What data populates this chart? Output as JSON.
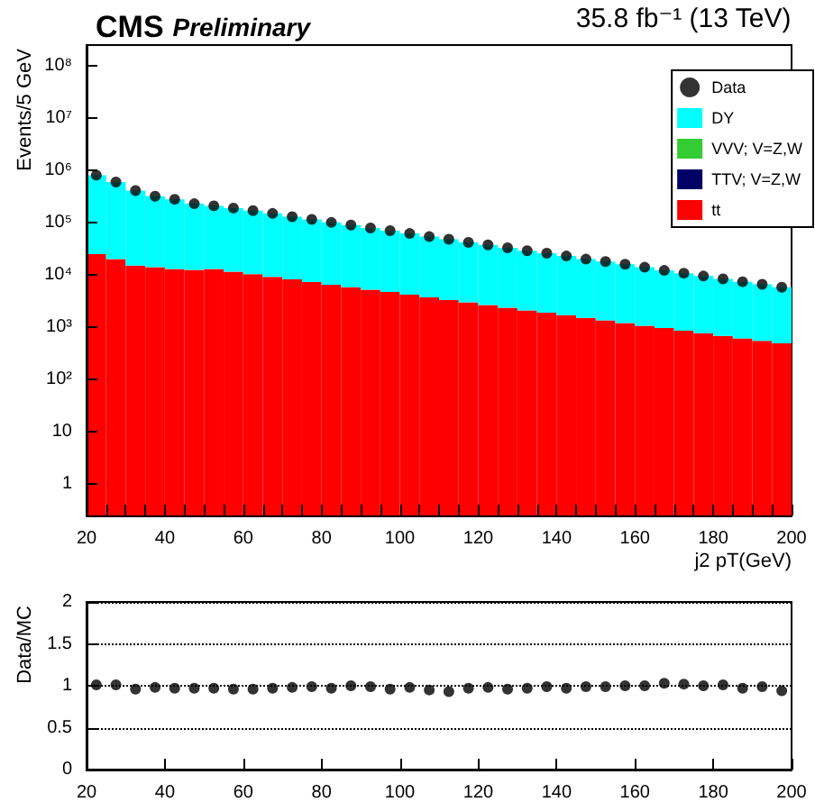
{
  "chart_data": [
    {
      "type": "bar",
      "title": "CMS",
      "subtitle": "Preliminary",
      "annotations": [
        "35.8 fb⁻¹ (13 TeV)"
      ],
      "xlabel": "j2 pT(GeV)",
      "ylabel": "Events/5 GeV",
      "x": [
        22.5,
        27.5,
        32.5,
        37.5,
        42.5,
        47.5,
        52.5,
        57.5,
        62.5,
        67.5,
        72.5,
        77.5,
        82.5,
        87.5,
        92.5,
        97.5,
        102.5,
        107.5,
        112.5,
        117.5,
        122.5,
        127.5,
        132.5,
        137.5,
        142.5,
        147.5,
        152.5,
        157.5,
        162.5,
        167.5,
        172.5,
        177.5,
        182.5,
        187.5,
        192.5,
        197.5
      ],
      "stacked": true,
      "log": "y",
      "marker": "circle",
      "legend": "top right",
      "grid": false,
      "xlim": [
        20,
        200
      ],
      "xticks": [
        20,
        {
          "value": 25,
          "label": null
        },
        {
          "value": 30,
          "label": null
        },
        {
          "value": 35,
          "label": null
        },
        40,
        {
          "value": 45,
          "label": null
        },
        {
          "value": 50,
          "label": null
        },
        {
          "value": 55,
          "label": null
        },
        60,
        {
          "value": 65,
          "label": null
        },
        {
          "value": 70,
          "label": null
        },
        {
          "value": 75,
          "label": null
        },
        80,
        {
          "value": 85,
          "label": null
        },
        {
          "value": 90,
          "label": null
        },
        {
          "value": 95,
          "label": null
        },
        100,
        {
          "value": 105,
          "label": null
        },
        {
          "value": 110,
          "label": null
        },
        {
          "value": 115,
          "label": null
        },
        120,
        {
          "value": 125,
          "label": null
        },
        {
          "value": 130,
          "label": null
        },
        {
          "value": 135,
          "label": null
        },
        140,
        {
          "value": 145,
          "label": null
        },
        {
          "value": 150,
          "label": null
        },
        {
          "value": 155,
          "label": null
        },
        160,
        {
          "value": 165,
          "label": null
        },
        {
          "value": 170,
          "label": null
        },
        {
          "value": 175,
          "label": null
        },
        180,
        {
          "value": 185,
          "label": null
        },
        {
          "value": 190,
          "label": null
        },
        {
          "value": 195,
          "label": null
        },
        200
      ],
      "ylim": [
        0.25,
        250000000
      ],
      "yticks": [
        1,
        10,
        {
          "value": 100,
          "label": "10²"
        },
        {
          "value": 1000,
          "label": "10³"
        },
        {
          "value": 10000,
          "label": "10⁴"
        },
        {
          "value": 100000,
          "label": "10⁵"
        },
        {
          "value": 1000000,
          "label": "10⁶"
        },
        {
          "value": 10000000,
          "label": "10⁷"
        },
        {
          "value": 100000000,
          "label": "10⁸"
        }
      ],
      "series": [
        {
          "name": "tt",
          "color": "#ff0000",
          "values": [
            25000,
            20000,
            15000,
            14000,
            13000,
            12500,
            13000,
            11500,
            10300,
            9200,
            8200,
            7300,
            6500,
            5800,
            5200,
            4700,
            4200,
            3700,
            3300,
            3000,
            2650,
            2350,
            2100,
            1900,
            1700,
            1500,
            1350,
            1200,
            1070,
            960,
            860,
            770,
            680,
            610,
            550,
            490
          ]
        },
        {
          "name": "TTV; V=Z,W",
          "color": "#000066",
          "values": [
            null,
            null,
            null,
            null,
            null,
            null,
            null,
            null,
            null,
            null,
            null,
            null,
            null,
            null,
            null,
            null,
            null,
            null,
            null,
            null,
            null,
            null,
            null,
            null,
            null,
            null,
            null,
            null,
            null,
            null,
            null,
            null,
            null,
            null,
            null,
            null
          ]
        },
        {
          "name": "VVV; V=Z,W",
          "color": "#33cc33",
          "values": [
            null,
            null,
            null,
            null,
            null,
            null,
            null,
            null,
            null,
            null,
            null,
            null,
            null,
            null,
            null,
            null,
            null,
            null,
            null,
            null,
            null,
            null,
            null,
            null,
            null,
            null,
            null,
            null,
            null,
            null,
            null,
            null,
            null,
            null,
            null,
            null
          ]
        },
        {
          "name": "DY",
          "color": "#00ffff",
          "values": [
            785000,
            580000,
            395000,
            306000,
            267000,
            217500,
            197000,
            178500,
            159700,
            140800,
            121800,
            107700,
            94500,
            84200,
            73800,
            65300,
            57800,
            50300,
            44700,
            39000,
            34850,
            30650,
            26900,
            24100,
            21300,
            18500,
            16650,
            14800,
            12930,
            11240,
            9940,
            8730,
            7720,
            6790,
            6050,
            5310
          ]
        },
        {
          "name": "Data",
          "type": "scatter",
          "color": "#000000",
          "x": [
            22.5,
            27.5,
            32.5,
            37.5,
            42.5,
            47.5,
            52.5,
            57.5,
            62.5,
            67.5,
            72.5,
            77.5,
            82.5,
            87.5,
            92.5,
            97.5,
            102.5,
            107.5,
            112.5,
            117.5,
            122.5,
            127.5,
            132.5,
            137.5,
            142.5,
            147.5,
            152.5,
            157.5,
            162.5,
            167.5,
            172.5,
            177.5,
            182.5,
            187.5,
            192.5,
            197.5
          ],
          "values": [
            810000,
            600000,
            410000,
            320000,
            280000,
            230000,
            210000,
            190000,
            170000,
            150000,
            130000,
            115000,
            101000,
            90000,
            79000,
            70000,
            62000,
            54000,
            48000,
            42000,
            37500,
            33000,
            29000,
            26000,
            23000,
            20000,
            18000,
            16000,
            14000,
            12200,
            10800,
            9500,
            8400,
            7400,
            6600,
            5800
          ]
        }
      ]
    },
    {
      "type": "scatter",
      "ylabel": "Data/MC",
      "marker": "circle",
      "grid": "y",
      "color": "#000000",
      "xlim": [
        20,
        200
      ],
      "xticks": [
        20,
        40,
        60,
        80,
        100,
        120,
        140,
        160,
        180,
        200
      ],
      "ylim": [
        0,
        2
      ],
      "yticks": [
        0,
        0.5,
        1,
        1.5,
        2
      ],
      "x": [
        22.5,
        27.5,
        32.5,
        37.5,
        42.5,
        47.5,
        52.5,
        57.5,
        62.5,
        67.5,
        72.5,
        77.5,
        82.5,
        87.5,
        92.5,
        97.5,
        102.5,
        107.5,
        112.5,
        117.5,
        122.5,
        127.5,
        132.5,
        137.5,
        142.5,
        147.5,
        152.5,
        157.5,
        162.5,
        167.5,
        172.5,
        177.5,
        182.5,
        187.5,
        192.5,
        197.5
      ],
      "values": [
        1.01,
        1.01,
        0.96,
        0.98,
        0.97,
        0.97,
        0.97,
        0.96,
        0.96,
        0.97,
        0.98,
        0.99,
        0.97,
        1.0,
        0.99,
        0.96,
        0.98,
        0.95,
        0.93,
        0.97,
        0.98,
        0.96,
        0.97,
        0.99,
        0.97,
        0.99,
        0.99,
        1.0,
        1.0,
        1.03,
        1.02,
        1.0,
        1.01,
        0.97,
        0.99,
        0.94
      ]
    }
  ]
}
